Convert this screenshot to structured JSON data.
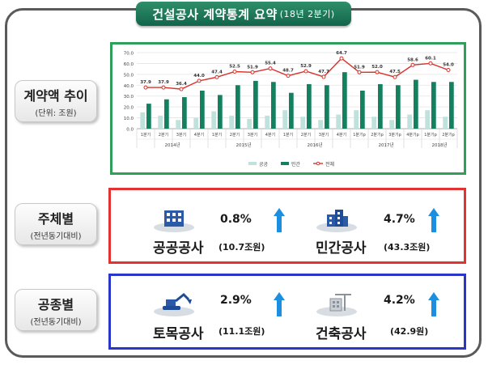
{
  "header": {
    "title": "건설공사 계약통계 요약",
    "subtitle": "(18년 2분기)"
  },
  "sections": {
    "trend": {
      "label": "계약액 추이",
      "sub": "(단위: 조원)"
    },
    "by_entity": {
      "label": "주체별",
      "sub": "(전년동기대비)"
    },
    "by_type": {
      "label": "공종별",
      "sub": "(전년동기대비)"
    }
  },
  "entity_stats": [
    {
      "name": "공공공사",
      "pct": "0.8%",
      "amount": "(10.7조원)",
      "icon": "government-building-icon",
      "direction": "up"
    },
    {
      "name": "민간공사",
      "pct": "4.7%",
      "amount": "(43.3조원)",
      "icon": "office-building-icon",
      "direction": "up"
    }
  ],
  "type_stats": [
    {
      "name": "토목공사",
      "pct": "2.9%",
      "amount": "(11.1조원)",
      "icon": "excavator-icon",
      "direction": "up"
    },
    {
      "name": "건축공사",
      "pct": "4.2%",
      "amount": "(42.9원)",
      "icon": "building-construction-icon",
      "direction": "up"
    }
  ],
  "colors": {
    "public": "#bfe3dc",
    "private": "#13805f",
    "total": "#d9312b",
    "arrow": "#1c8fe0"
  },
  "chart_data": {
    "type": "bar",
    "categories": [
      "1분기",
      "2분기",
      "3분기",
      "4분기",
      "1분기",
      "2분기",
      "3분기",
      "4분기",
      "1분기",
      "2분기",
      "3분기",
      "4분기",
      "1분기p",
      "2분기p",
      "3분기p",
      "4분기p",
      "1분기p",
      "2분기p"
    ],
    "years": [
      {
        "label": "2014년",
        "span": 4
      },
      {
        "label": "2015년",
        "span": 4
      },
      {
        "label": "2016년",
        "span": 4
      },
      {
        "label": "2017년",
        "span": 4
      },
      {
        "label": "2018년",
        "span": 2
      }
    ],
    "series": [
      {
        "name": "공공",
        "kind": "bar",
        "values": [
          15,
          12,
          8,
          10,
          16,
          12,
          9,
          12,
          17,
          11,
          8,
          13,
          17,
          11,
          8,
          13,
          17,
          11
        ]
      },
      {
        "name": "민간",
        "kind": "bar",
        "values": [
          23,
          27,
          29,
          35,
          31,
          40,
          44,
          43,
          33,
          41,
          40,
          52,
          35,
          41,
          40,
          45,
          43,
          43
        ]
      },
      {
        "name": "전체",
        "kind": "line",
        "values": [
          37.9,
          37.9,
          36.4,
          44.0,
          47.4,
          52.5,
          51.9,
          55.4,
          48.7,
          52.9,
          47.7,
          64.7,
          51.9,
          52.0,
          47.5,
          58.6,
          60.1,
          54.0
        ]
      }
    ],
    "data_labels": [
      "37.9",
      "37.9",
      "36.4",
      "44.0",
      "47.4",
      "52.5",
      "51.9",
      "55.4",
      "48.7",
      "52.9",
      "47.7",
      "64.7",
      "51.9",
      "52.0",
      "47.5",
      "58.6",
      "60.1",
      "54.0"
    ],
    "yticks": [
      "0.0",
      "10.0",
      "20.0",
      "30.0",
      "40.0",
      "50.0",
      "60.0",
      "70.0"
    ],
    "ylim": [
      0,
      70
    ],
    "grid": true,
    "legend_position": "bottom"
  }
}
